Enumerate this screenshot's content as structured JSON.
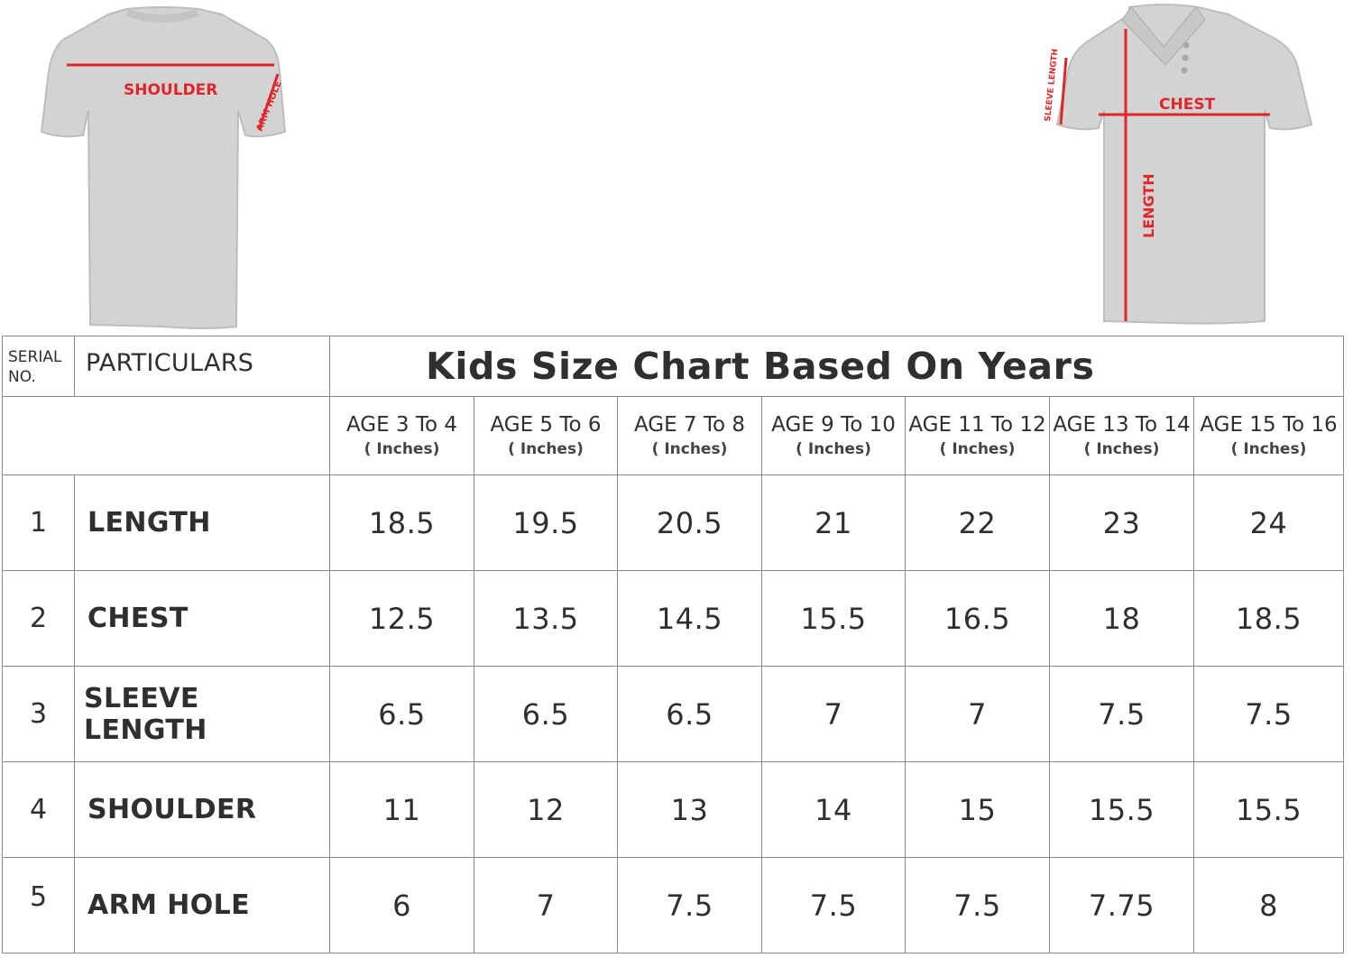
{
  "back_shirt": {
    "shoulder_label": "SHOULDER",
    "armhole_label": "ARM HOLE"
  },
  "front_shirt": {
    "chest_label": "CHEST",
    "sleeve_label": "SLEEVE LENGTH",
    "length_label": "LENGTH"
  },
  "table": {
    "serial_header": "SERIAL NO.",
    "particulars_header": "PARTICULARS",
    "title": "Kids Size Chart Based On Years",
    "unit_label": "( Inches)",
    "age_columns": [
      "AGE 3 To 4",
      "AGE 5 To 6",
      "AGE 7 To 8",
      "AGE 9 To 10",
      "AGE 11 To 12",
      "AGE 13 To 14",
      "AGE 15 To 16"
    ],
    "rows": [
      {
        "serial": "1",
        "particular": "LENGTH",
        "values": [
          "18.5",
          "19.5",
          "20.5",
          "21",
          "22",
          "23",
          "24"
        ]
      },
      {
        "serial": "2",
        "particular": "CHEST",
        "values": [
          "12.5",
          "13.5",
          "14.5",
          "15.5",
          "16.5",
          "18",
          "18.5"
        ]
      },
      {
        "serial": "3",
        "particular": "SLEEVE LENGTH",
        "values": [
          "6.5",
          "6.5",
          "6.5",
          "7",
          "7",
          "7.5",
          "7.5"
        ]
      },
      {
        "serial": "4",
        "particular": "SHOULDER",
        "values": [
          "11",
          "12",
          "13",
          "14",
          "15",
          "15.5",
          "15.5"
        ]
      },
      {
        "serial": "5",
        "particular": "ARM HOLE",
        "values": [
          "6",
          "7",
          "7.5",
          "7.5",
          "7.5",
          "7.75",
          "8"
        ]
      }
    ]
  },
  "colors": {
    "measure_line": "#e0262b",
    "shirt": "#cfcfcf",
    "border": "#8a8a8a"
  }
}
